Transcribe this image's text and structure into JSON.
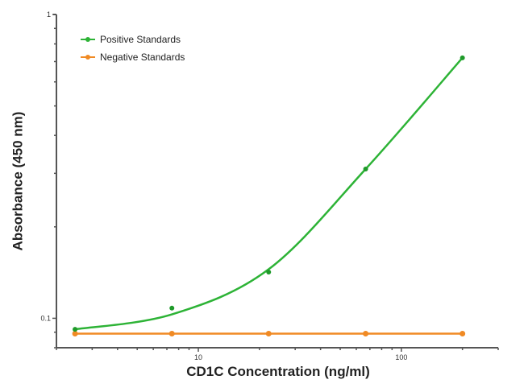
{
  "chart_data": {
    "type": "line",
    "title": "",
    "xlabel": "CD1C Concentration (ng/ml)",
    "ylabel": "Absorbance (450 nm)",
    "xscale": "log",
    "yscale": "log",
    "xlim": [
      2.0,
      300
    ],
    "ylim": [
      0.08,
      1
    ],
    "x_tick_labels": [
      "10",
      "100"
    ],
    "y_tick_labels": [
      "0.1",
      "1"
    ],
    "legend_position": "upper left",
    "grid": false,
    "x": [
      2.47,
      7.41,
      22.2,
      66.7,
      200
    ],
    "series": [
      {
        "name": "Positive Standards",
        "color": "#2db336",
        "values": [
          0.092,
          0.108,
          0.142,
          0.31,
          0.72
        ],
        "fit": "4PL curve"
      },
      {
        "name": "Negative Standards",
        "color": "#f08a24",
        "values": [
          0.089,
          0.089,
          0.089,
          0.089,
          0.089
        ]
      }
    ]
  },
  "legend": {
    "items": [
      {
        "label": "Positive Standards",
        "color": "#2db336"
      },
      {
        "label": "Negative Standards",
        "color": "#f08a24"
      }
    ]
  },
  "axes": {
    "xlabel": "CD1C Concentration (ng/ml)",
    "ylabel": "Absorbance (450 nm)"
  }
}
